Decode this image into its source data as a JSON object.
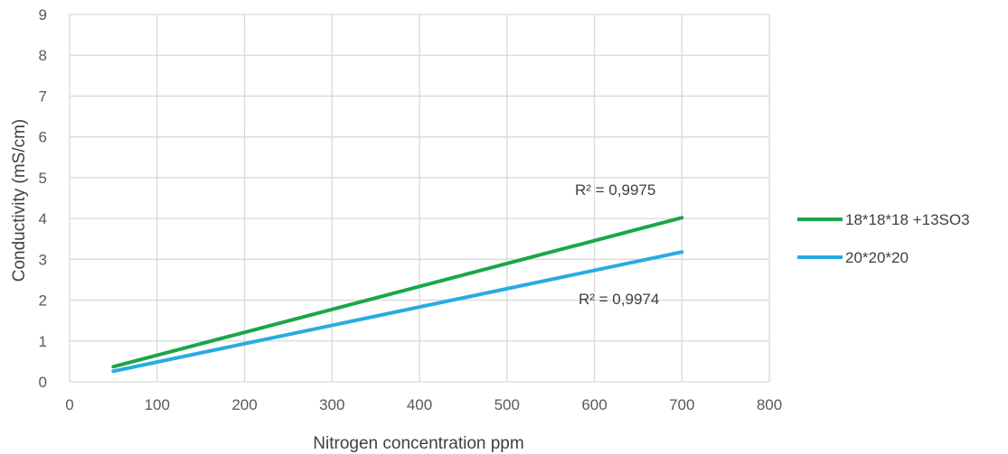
{
  "chart_data": {
    "type": "line",
    "xlabel": "Nitrogen concentration ppm",
    "ylabel": "Conductivity (mS/cm)",
    "xlim": [
      0,
      800
    ],
    "ylim": [
      0,
      9
    ],
    "x_ticks": [
      "0",
      "100",
      "200",
      "300",
      "400",
      "500",
      "600",
      "700",
      "800"
    ],
    "y_ticks": [
      "0",
      "1",
      "2",
      "3",
      "4",
      "5",
      "6",
      "7",
      "8",
      "9"
    ],
    "grid": true,
    "legend_position": "right",
    "series": [
      {
        "name": "18*18*18 +13SO3",
        "color": "#1aa64a",
        "x": [
          50,
          700
        ],
        "y": [
          0.37,
          4.02
        ]
      },
      {
        "name": "20*20*20",
        "color": "#29abe2",
        "x": [
          50,
          700
        ],
        "y": [
          0.26,
          3.18
        ]
      }
    ],
    "annotations": [
      {
        "text": "R² = 0,9975",
        "series": 0
      },
      {
        "text": "R² = 0,9974",
        "series": 1
      }
    ]
  }
}
